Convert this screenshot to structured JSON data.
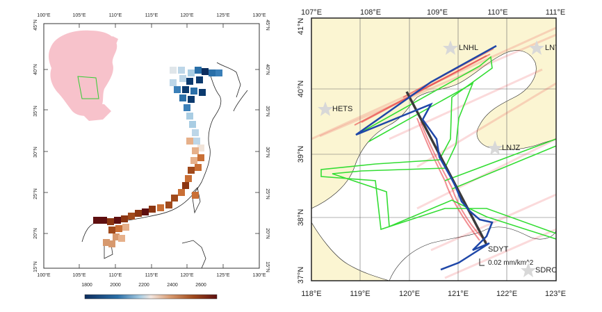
{
  "left_panel": {
    "top_lon_labels": [
      "100°E",
      "105°E",
      "110°E",
      "115°E",
      "120°E",
      "125°E",
      "130°E"
    ],
    "bottom_lon_labels": [
      "100°E",
      "105°E",
      "110°E",
      "115°E",
      "120°E",
      "125°E",
      "130°E"
    ],
    "left_lat_labels": [
      "45°N",
      "40°N",
      "35°N",
      "30°N",
      "25°N",
      "20°N",
      "15°N"
    ],
    "right_lat_labels": [
      "45°N",
      "40°N",
      "35°N",
      "30°N",
      "25°N",
      "20°N",
      "15°N"
    ],
    "colorbar": {
      "tick_labels": [
        "1800",
        "2000",
        "2200",
        "2400",
        "2600"
      ],
      "colors": [
        "#0b2d5e",
        "#2a6fa8",
        "#a9cde3",
        "#f3e6df",
        "#d7996e",
        "#a04a1c",
        "#5e0f10"
      ]
    },
    "inset_color": "#f7c2cb",
    "cell_palette_note_colors": {
      "dark_blue": "#0b3a6e",
      "mid_blue": "#3a7fb8",
      "light_blue": "#bcd6e8",
      "cream": "#f1e3d8",
      "light_orange": "#e6b08a",
      "orange": "#c96f35",
      "brown": "#8c3612",
      "dark_red": "#5e0f10"
    }
  },
  "right_panel": {
    "top_lon_labels": [
      "107°E",
      "108°E",
      "109°E",
      "110°E",
      "111°E"
    ],
    "bottom_lon_labels": [
      "118°E",
      "119°E",
      "120°E",
      "121°E",
      "122°E",
      "123°E"
    ],
    "left_lat_labels": [
      "41°N",
      "40°N",
      "39°N",
      "38°N",
      "37°N"
    ],
    "stations": [
      {
        "name": "LNHL"
      },
      {
        "name": "LNY"
      },
      {
        "name": "HETS"
      },
      {
        "name": "LNJZ"
      },
      {
        "name": "SDYT"
      },
      {
        "name": "SDRC"
      }
    ],
    "legend_text": "0.02 mm/km^2",
    "colors": {
      "land": "#fbf5d2",
      "sea": "#ffffff",
      "track": "#1f47a8",
      "boundary": "#33dd33",
      "density": "#e8333a",
      "transect": "#3a3a3a",
      "station": "#d8d8d8"
    }
  }
}
